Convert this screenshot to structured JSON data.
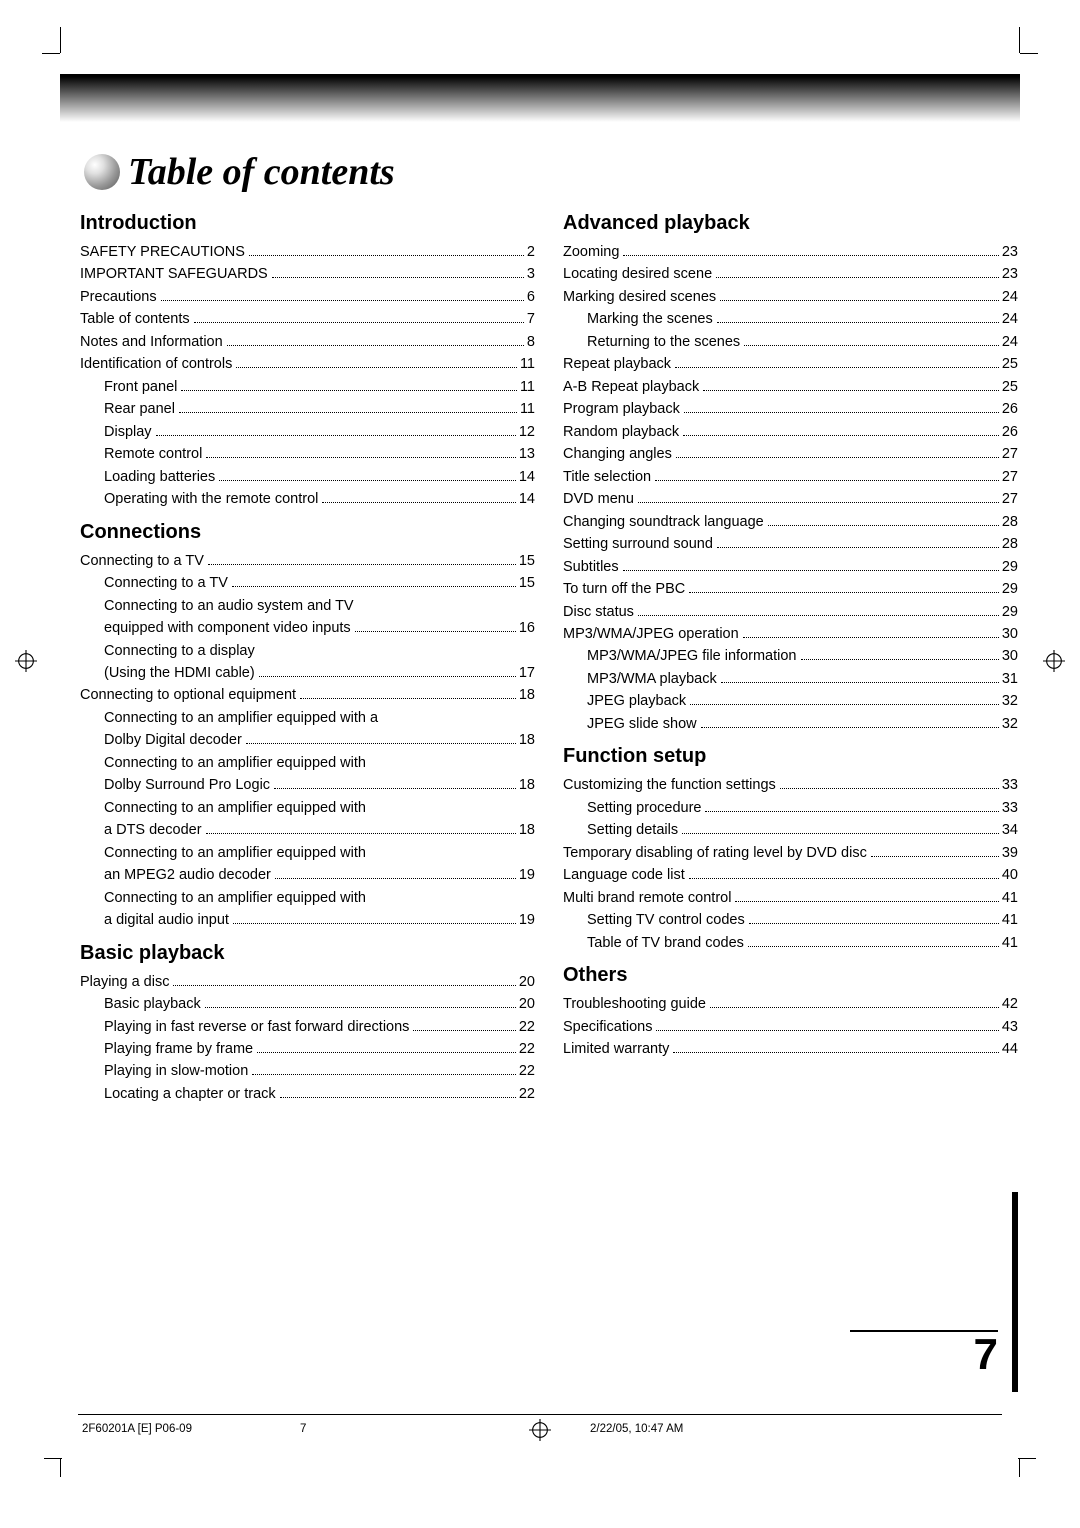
{
  "page_title": "Table of contents",
  "page_number": "7",
  "footer": {
    "left": "2F60201A [E] P06-09",
    "mid": "7",
    "right": "2/22/05, 10:47 AM"
  },
  "swatches_left_colors": [
    "#000000",
    "#000000",
    "#000000",
    "#000000",
    "#7a7a7a",
    "#7a7a7a",
    "#c4c4c4",
    "#c4c4c4",
    "#e2e2e2",
    "#f0f0f0"
  ],
  "swatches_right_colors": [
    "#00b0b0",
    "#d400d4",
    "#d4d400",
    "#000000",
    "#e00000",
    "#00a000",
    "#0030d0",
    "#ffffff",
    "#60d0ff",
    "#ffa0d8"
  ],
  "left_sections": [
    {
      "title": "Introduction",
      "items": [
        {
          "t": "SAFETY PRECAUTIONS",
          "p": "2"
        },
        {
          "t": "IMPORTANT SAFEGUARDS",
          "p": "3"
        },
        {
          "t": "Precautions",
          "p": "6"
        },
        {
          "t": "Table of contents",
          "p": "7"
        },
        {
          "t": "Notes and Information",
          "p": "8"
        },
        {
          "t": "Identification of controls",
          "p": "11"
        },
        {
          "t": "Front panel",
          "p": "11",
          "sub": true
        },
        {
          "t": "Rear panel",
          "p": "11",
          "sub": true
        },
        {
          "t": "Display",
          "p": "12",
          "sub": true
        },
        {
          "t": "Remote control",
          "p": "13",
          "sub": true
        },
        {
          "t": "Loading batteries",
          "p": "14",
          "sub": true
        },
        {
          "t": "Operating with the remote control",
          "p": "14",
          "sub": true
        }
      ]
    },
    {
      "title": "Connections",
      "items": [
        {
          "t": "Connecting to a TV",
          "p": "15"
        },
        {
          "t": "Connecting to a TV",
          "p": "15",
          "sub": true
        },
        {
          "t": "Connecting to an audio system and TV",
          "sub": true,
          "nopage": true
        },
        {
          "t": "equipped with component video inputs",
          "p": "16",
          "sub": true
        },
        {
          "t": "Connecting to a display",
          "sub": true,
          "nopage": true
        },
        {
          "t": "(Using the HDMI cable)",
          "p": "17",
          "sub": true
        },
        {
          "t": "Connecting to optional equipment",
          "p": "18"
        },
        {
          "t": "Connecting to an amplifier equipped with a",
          "sub": true,
          "nopage": true
        },
        {
          "t": "Dolby Digital decoder",
          "p": "18",
          "sub": true
        },
        {
          "t": "Connecting to an amplifier equipped with",
          "sub": true,
          "nopage": true
        },
        {
          "t": "Dolby Surround Pro Logic",
          "p": "18",
          "sub": true
        },
        {
          "t": "Connecting to an amplifier equipped with",
          "sub": true,
          "nopage": true
        },
        {
          "t": "a DTS decoder",
          "p": "18",
          "sub": true
        },
        {
          "t": "Connecting to an amplifier equipped with",
          "sub": true,
          "nopage": true
        },
        {
          "t": "an MPEG2 audio decoder",
          "p": "19",
          "sub": true
        },
        {
          "t": "Connecting to an amplifier equipped with",
          "sub": true,
          "nopage": true
        },
        {
          "t": "a digital audio input",
          "p": "19",
          "sub": true
        }
      ]
    },
    {
      "title": "Basic playback",
      "items": [
        {
          "t": "Playing a disc",
          "p": "20"
        },
        {
          "t": "Basic playback",
          "p": "20",
          "sub": true
        },
        {
          "t": "Playing in fast reverse or fast forward directions",
          "p": "22",
          "sub": true
        },
        {
          "t": "Playing frame by frame",
          "p": "22",
          "sub": true
        },
        {
          "t": "Playing in slow-motion",
          "p": "22",
          "sub": true
        },
        {
          "t": "Locating a chapter or track",
          "p": "22",
          "sub": true
        }
      ]
    }
  ],
  "right_sections": [
    {
      "title": "Advanced playback",
      "items": [
        {
          "t": "Zooming",
          "p": "23"
        },
        {
          "t": "Locating desired scene",
          "p": "23"
        },
        {
          "t": "Marking desired scenes",
          "p": "24"
        },
        {
          "t": "Marking the scenes",
          "p": "24",
          "sub": true
        },
        {
          "t": "Returning to the scenes",
          "p": "24",
          "sub": true
        },
        {
          "t": "Repeat playback",
          "p": "25"
        },
        {
          "t": "A-B Repeat playback",
          "p": "25"
        },
        {
          "t": "Program playback",
          "p": "26"
        },
        {
          "t": "Random playback",
          "p": "26"
        },
        {
          "t": "Changing angles",
          "p": "27"
        },
        {
          "t": "Title selection",
          "p": "27"
        },
        {
          "t": "DVD menu",
          "p": "27"
        },
        {
          "t": "Changing soundtrack language",
          "p": "28"
        },
        {
          "t": "Setting surround sound",
          "p": "28"
        },
        {
          "t": "Subtitles",
          "p": "29"
        },
        {
          "t": "To turn off the PBC",
          "p": "29"
        },
        {
          "t": "Disc status",
          "p": "29"
        },
        {
          "t": "MP3/WMA/JPEG operation",
          "p": "30"
        },
        {
          "t": "MP3/WMA/JPEG file information",
          "p": "30",
          "sub": true
        },
        {
          "t": "MP3/WMA playback",
          "p": "31",
          "sub": true
        },
        {
          "t": "JPEG playback",
          "p": "32",
          "sub": true
        },
        {
          "t": "JPEG slide show",
          "p": "32",
          "sub": true
        }
      ]
    },
    {
      "title": "Function setup",
      "items": [
        {
          "t": "Customizing the function settings",
          "p": "33"
        },
        {
          "t": "Setting procedure",
          "p": "33",
          "sub": true
        },
        {
          "t": "Setting details",
          "p": "34",
          "sub": true
        },
        {
          "t": "Temporary disabling of rating level by DVD disc",
          "p": "39"
        },
        {
          "t": "Language code list",
          "p": "40"
        },
        {
          "t": "Multi brand remote control",
          "p": "41"
        },
        {
          "t": "Setting TV control codes",
          "p": "41",
          "sub": true
        },
        {
          "t": "Table of TV brand codes",
          "p": "41",
          "sub": true
        }
      ]
    },
    {
      "title": "Others",
      "items": [
        {
          "t": "Troubleshooting guide",
          "p": "42"
        },
        {
          "t": "Specifications",
          "p": "43"
        },
        {
          "t": "Limited warranty",
          "p": "44"
        }
      ]
    }
  ]
}
